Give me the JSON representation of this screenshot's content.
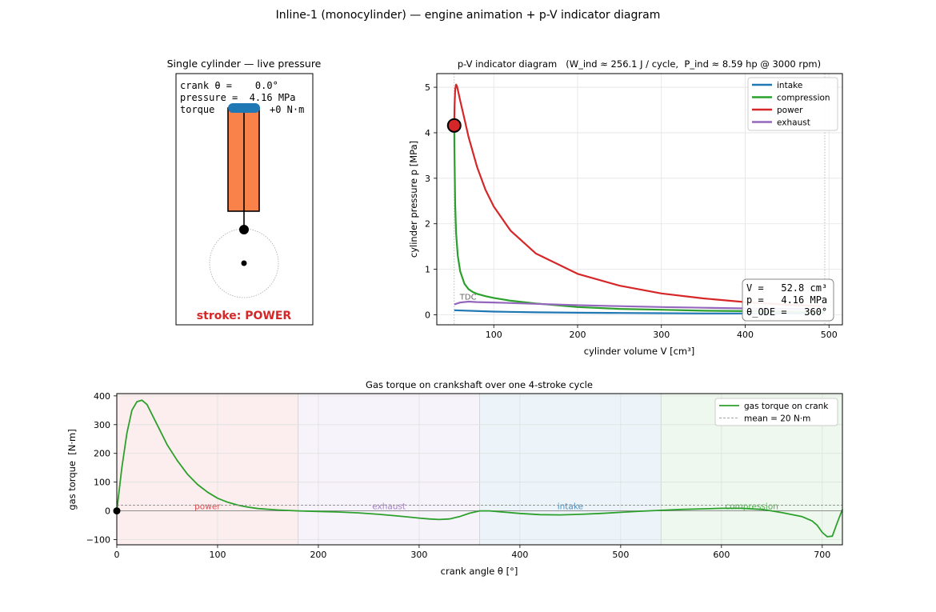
{
  "figure": {
    "title": "Inline-1 (monocylinder) — engine animation + p-V indicator diagram"
  },
  "colors": {
    "intake": "#1f77b4",
    "compression": "#2ca02c",
    "power": "#d62728",
    "exhaust": "#9467bd",
    "piston": "#f8824a",
    "piston_crown": "#1f77b4",
    "torque": "#2ca02c"
  },
  "engine_panel": {
    "title": "Single cylinder — live pressure",
    "readout": {
      "crank": "crank θ =    0.0°",
      "pressure": "pressure =  4.16 MPa",
      "torque_label": "torque",
      "torque_value": "+0 N·m"
    },
    "stroke_label": "stroke: POWER",
    "piston_position_fraction": 0.0
  },
  "chart_data": [
    {
      "type": "line",
      "title": "p-V indicator diagram   (W_ind ≈ 256.1 J / cycle,  P_ind ≈ 8.59 hp @ 3000 rpm)",
      "xlabel": "cylinder volume V [cm³]",
      "ylabel": "cylinder pressure p [MPa]",
      "xlim": [
        32,
        516
      ],
      "ylim": [
        -0.22,
        5.3
      ],
      "xticks": [
        100,
        200,
        300,
        400,
        500
      ],
      "yticks": [
        0,
        1,
        2,
        3,
        4,
        5
      ],
      "grid": true,
      "legend_position": "top-right",
      "tdc_label": "TDC",
      "tdc_volume": 52.8,
      "bdc_volume": 495,
      "series": [
        {
          "name": "intake",
          "color": "#1f77b4",
          "x": [
            52.8,
            100,
            150,
            200,
            250,
            300,
            350,
            400,
            450,
            495
          ],
          "y": [
            0.1,
            0.07,
            0.055,
            0.045,
            0.04,
            0.035,
            0.03,
            0.03,
            0.03,
            0.03
          ]
        },
        {
          "name": "compression",
          "color": "#2ca02c",
          "x": [
            495,
            450,
            400,
            350,
            300,
            250,
            200,
            150,
            120,
            100,
            90,
            80,
            75,
            70,
            65,
            60,
            57,
            55,
            54,
            53.5,
            53,
            52.8
          ],
          "y": [
            0.06,
            0.07,
            0.08,
            0.09,
            0.11,
            0.13,
            0.17,
            0.25,
            0.31,
            0.37,
            0.41,
            0.46,
            0.5,
            0.56,
            0.68,
            0.95,
            1.3,
            1.8,
            2.4,
            3.0,
            3.7,
            4.16
          ]
        },
        {
          "name": "power",
          "color": "#d62728",
          "x": [
            52.8,
            53.2,
            54,
            55,
            56,
            57,
            60,
            65,
            70,
            80,
            90,
            100,
            120,
            150,
            200,
            250,
            300,
            350,
            400,
            450,
            495
          ],
          "y": [
            4.16,
            4.6,
            4.95,
            5.06,
            5.03,
            4.95,
            4.7,
            4.3,
            3.9,
            3.25,
            2.75,
            2.38,
            1.85,
            1.35,
            0.9,
            0.64,
            0.47,
            0.36,
            0.28,
            0.22,
            0.19
          ]
        },
        {
          "name": "exhaust",
          "color": "#9467bd",
          "x": [
            495,
            450,
            400,
            350,
            300,
            250,
            200,
            150,
            100,
            80,
            70,
            60,
            55,
            52.8
          ],
          "y": [
            0.12,
            0.13,
            0.14,
            0.155,
            0.17,
            0.19,
            0.21,
            0.24,
            0.27,
            0.28,
            0.29,
            0.27,
            0.24,
            0.23
          ]
        }
      ],
      "current_point": {
        "V": 52.8,
        "p": 4.16
      },
      "info_box": {
        "V": "V =   52.8 cm³",
        "p": "p =   4.16 MPa",
        "theta": "θ_ODE =   360°"
      }
    },
    {
      "type": "line",
      "title": "Gas torque on crankshaft over one 4-stroke cycle",
      "xlabel": "crank angle θ [°]",
      "ylabel": "gas torque  [N·m]",
      "xlim": [
        0,
        720
      ],
      "ylim": [
        -118,
        408
      ],
      "xticks": [
        0,
        100,
        200,
        300,
        400,
        500,
        600,
        700
      ],
      "yticks": [
        -100,
        0,
        100,
        200,
        300,
        400
      ],
      "grid": true,
      "legend_position": "top-right",
      "series": [
        {
          "name": "gas torque on crank",
          "color": "#2ca02c",
          "x": [
            0,
            5,
            10,
            15,
            20,
            25,
            30,
            40,
            50,
            60,
            70,
            80,
            90,
            100,
            110,
            120,
            130,
            140,
            160,
            180,
            200,
            220,
            240,
            260,
            280,
            300,
            310,
            320,
            330,
            340,
            350,
            360,
            370,
            380,
            400,
            420,
            440,
            460,
            480,
            500,
            520,
            540,
            560,
            580,
            600,
            620,
            640,
            650,
            660,
            680,
            690,
            695,
            700,
            705,
            710,
            715,
            720
          ],
          "y": [
            0,
            150,
            270,
            350,
            380,
            385,
            370,
            300,
            230,
            175,
            128,
            92,
            65,
            44,
            30,
            20,
            13,
            8,
            3,
            0,
            -2,
            -4,
            -7,
            -12,
            -18,
            -25,
            -28,
            -30,
            -28,
            -20,
            -8,
            0,
            0,
            -3,
            -9,
            -13,
            -14,
            -12,
            -9,
            -5,
            -1,
            2,
            5,
            7,
            9,
            9,
            5,
            0,
            -6,
            -20,
            -35,
            -50,
            -75,
            -90,
            -88,
            -40,
            5
          ]
        },
        {
          "name": "mean = 20 N·m",
          "color": "#888888",
          "style": "dashed",
          "constant": 20
        }
      ],
      "regions": [
        {
          "label": "power",
          "from": 0,
          "to": 180,
          "color": "#d62728"
        },
        {
          "label": "exhaust",
          "from": 180,
          "to": 360,
          "color": "#9467bd"
        },
        {
          "label": "intake",
          "from": 360,
          "to": 540,
          "color": "#1f77b4"
        },
        {
          "label": "compression",
          "from": 540,
          "to": 720,
          "color": "#2ca02c"
        }
      ],
      "current_marker": {
        "theta": 0,
        "torque": 0
      }
    }
  ]
}
